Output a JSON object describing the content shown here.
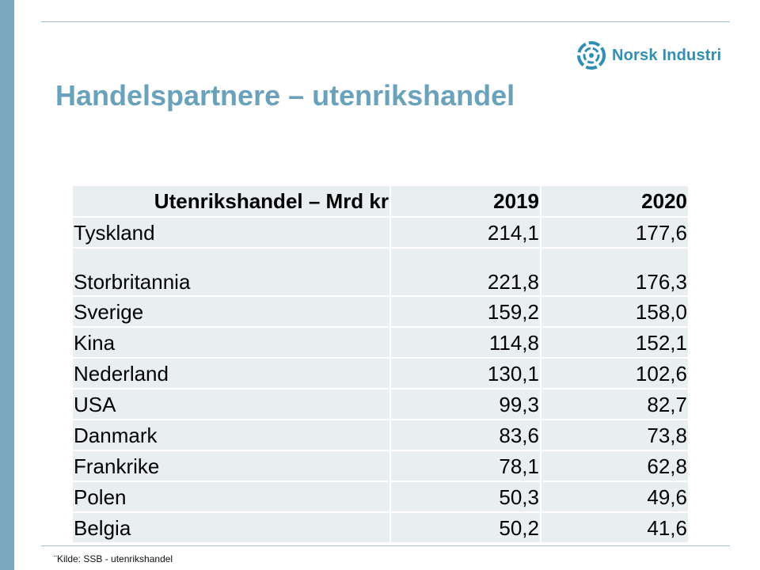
{
  "logo": {
    "text": "Norsk Industri",
    "icon": "norsk-industri-logo-icon",
    "color": "#2f8fb5"
  },
  "title": "Handelspartnere – utenrikshandel",
  "table": {
    "headers": [
      "Utenrikshandel – Mrd kr",
      "2019",
      "2020"
    ],
    "rows": [
      [
        "Tyskland",
        "214,1",
        "177,6"
      ],
      [
        "Storbritannia",
        "221,8",
        "176,3"
      ],
      [
        "Sverige",
        "159,2",
        "158,0"
      ],
      [
        "Kina",
        "114,8",
        "152,1"
      ],
      [
        "Nederland",
        "130,1",
        "102,6"
      ],
      [
        "USA",
        "99,3",
        "82,7"
      ],
      [
        "Danmark",
        "83,6",
        "73,8"
      ],
      [
        "Frankrike",
        "78,1",
        "62,8"
      ],
      [
        "Polen",
        "50,3",
        "49,6"
      ],
      [
        "Belgia",
        "50,2",
        "41,6"
      ]
    ]
  },
  "source": "¨Kilde: SSB - utenrikshandel",
  "colors": {
    "accent": "#6aa2bb",
    "sidebar": "#7aa9bf",
    "table_bg": "#e9eef1"
  }
}
